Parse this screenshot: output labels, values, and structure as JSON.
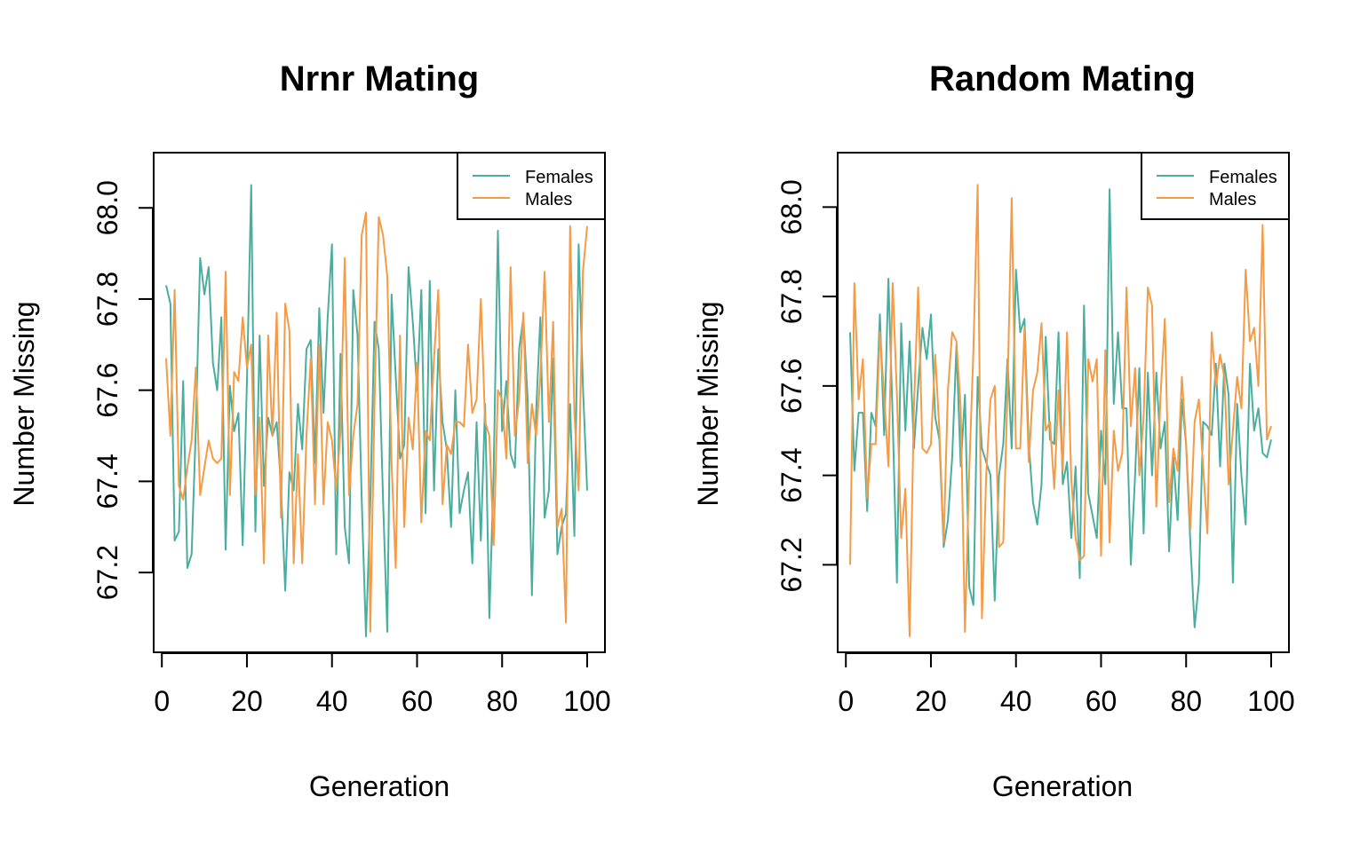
{
  "colors": {
    "females": "#4aae9e",
    "males": "#f59a45"
  },
  "chart_data": [
    {
      "type": "line",
      "title": "Nrnr Mating",
      "xlabel": "Generation",
      "ylabel": "Number Missing",
      "xlim": [
        1,
        100
      ],
      "ylim": [
        67.06,
        68.09
      ],
      "xticks": [
        "0",
        "20",
        "40",
        "60",
        "80",
        "100"
      ],
      "yticks": [
        "67.2",
        "67.4",
        "67.6",
        "67.8",
        "68.0"
      ],
      "legend_position": "top-right",
      "grid": false,
      "series": [
        {
          "name": "Females",
          "color_key": "females",
          "values": [
            67.83,
            67.79,
            67.27,
            67.29,
            67.62,
            67.21,
            67.24,
            67.52,
            67.89,
            67.81,
            67.87,
            67.66,
            67.6,
            67.76,
            67.25,
            67.61,
            67.51,
            67.55,
            67.26,
            67.62,
            68.05,
            67.29,
            67.72,
            67.39,
            67.54,
            67.5,
            67.53,
            67.39,
            67.16,
            67.42,
            67.38,
            67.57,
            67.47,
            67.69,
            67.71,
            67.44,
            67.78,
            67.55,
            67.76,
            67.92,
            67.24,
            67.68,
            67.3,
            67.22,
            67.82,
            67.72,
            67.36,
            67.06,
            67.35,
            67.75,
            67.69,
            67.36,
            67.07,
            67.81,
            67.63,
            67.45,
            67.48,
            67.87,
            67.75,
            67.6,
            67.82,
            67.33,
            67.84,
            67.38,
            67.69,
            67.53,
            67.47,
            67.3,
            67.6,
            67.33,
            67.38,
            67.42,
            67.22,
            67.53,
            67.27,
            67.57,
            67.1,
            67.42,
            67.95,
            67.51,
            67.62,
            67.46,
            67.43,
            67.69,
            67.76,
            67.58,
            67.15,
            67.55,
            67.76,
            67.32,
            67.38,
            67.67,
            67.24,
            67.3,
            67.33,
            67.57,
            67.28,
            67.92,
            67.61,
            67.38
          ]
        },
        {
          "name": "Males",
          "color_key": "males",
          "values": [
            67.67,
            67.5,
            67.82,
            67.39,
            67.36,
            67.43,
            67.49,
            67.65,
            67.37,
            67.43,
            67.49,
            67.45,
            67.44,
            67.45,
            67.86,
            67.37,
            67.64,
            67.62,
            67.76,
            67.65,
            67.7,
            67.37,
            67.54,
            67.22,
            67.72,
            67.5,
            67.77,
            67.32,
            67.79,
            67.73,
            67.22,
            67.46,
            67.22,
            67.5,
            67.67,
            67.35,
            67.7,
            67.35,
            67.53,
            67.49,
            67.38,
            67.51,
            67.89,
            67.37,
            67.5,
            67.57,
            67.94,
            67.99,
            67.07,
            67.57,
            67.98,
            67.94,
            67.85,
            67.44,
            67.21,
            67.72,
            67.3,
            67.54,
            67.47,
            67.66,
            67.31,
            67.51,
            67.49,
            67.67,
            67.82,
            67.35,
            67.48,
            67.46,
            67.53,
            67.53,
            67.52,
            67.7,
            67.55,
            67.58,
            67.8,
            67.53,
            67.5,
            67.26,
            67.6,
            67.58,
            67.45,
            67.87,
            67.5,
            67.58,
            67.77,
            67.44,
            67.57,
            67.5,
            67.63,
            67.86,
            67.53,
            67.75,
            67.3,
            67.34,
            67.09,
            67.96,
            67.55,
            67.38,
            67.86,
            67.96
          ]
        }
      ]
    },
    {
      "type": "line",
      "title": "Random Mating",
      "xlabel": "Generation",
      "ylabel": "Number Missing",
      "xlim": [
        1,
        100
      ],
      "ylim": [
        67.04,
        68.09
      ],
      "xticks": [
        "0",
        "20",
        "40",
        "60",
        "80",
        "100"
      ],
      "yticks": [
        "67.2",
        "67.4",
        "67.6",
        "67.8",
        "68.0"
      ],
      "legend_position": "top-right",
      "grid": false,
      "series": [
        {
          "name": "Females",
          "color_key": "females",
          "values": [
            67.72,
            67.41,
            67.54,
            67.54,
            67.32,
            67.54,
            67.51,
            67.76,
            67.49,
            67.84,
            67.53,
            67.16,
            67.74,
            67.5,
            67.7,
            67.46,
            67.6,
            67.73,
            67.66,
            67.76,
            67.53,
            67.48,
            67.24,
            67.3,
            67.44,
            67.69,
            67.42,
            67.58,
            67.15,
            67.11,
            67.62,
            67.46,
            67.43,
            67.4,
            67.12,
            67.4,
            67.47,
            67.66,
            67.46,
            67.86,
            67.72,
            67.75,
            67.47,
            67.34,
            67.29,
            67.38,
            67.71,
            67.48,
            67.47,
            67.72,
            67.38,
            67.43,
            67.26,
            67.42,
            67.17,
            67.78,
            67.36,
            67.31,
            67.26,
            67.5,
            67.38,
            68.04,
            67.56,
            67.72,
            67.55,
            67.55,
            67.2,
            67.4,
            67.64,
            67.27,
            67.63,
            67.4,
            67.63,
            67.46,
            67.52,
            67.23,
            67.44,
            67.3,
            67.57,
            67.47,
            67.25,
            67.06,
            67.16,
            67.52,
            67.51,
            67.49,
            67.65,
            67.42,
            67.65,
            67.58,
            67.16,
            67.56,
            67.4,
            67.29,
            67.65,
            67.5,
            67.55,
            67.45,
            67.44,
            67.48
          ]
        },
        {
          "name": "Males",
          "color_key": "males",
          "values": [
            67.2,
            67.83,
            67.57,
            67.66,
            67.35,
            67.47,
            67.47,
            67.72,
            67.58,
            67.42,
            67.83,
            67.58,
            67.26,
            67.37,
            67.04,
            67.55,
            67.82,
            67.46,
            67.45,
            67.47,
            67.67,
            67.5,
            67.25,
            67.59,
            67.72,
            67.7,
            67.55,
            67.05,
            67.41,
            67.68,
            68.05,
            67.08,
            67.4,
            67.57,
            67.6,
            67.24,
            67.25,
            67.59,
            68.02,
            67.46,
            67.46,
            67.73,
            67.43,
            67.59,
            67.63,
            67.74,
            67.5,
            67.52,
            67.37,
            67.59,
            67.41,
            67.72,
            67.39,
            67.26,
            67.21,
            67.22,
            67.66,
            67.61,
            67.66,
            67.22,
            67.68,
            67.25,
            67.5,
            67.41,
            67.45,
            67.82,
            67.51,
            67.64,
            67.4,
            67.53,
            67.82,
            67.78,
            67.33,
            67.58,
            67.75,
            67.34,
            67.46,
            67.41,
            67.62,
            67.47,
            67.28,
            67.52,
            67.57,
            67.42,
            67.27,
            67.72,
            67.6,
            67.67,
            67.62,
            67.38,
            67.5,
            67.62,
            67.55,
            67.86,
            67.7,
            67.73,
            67.6,
            67.96,
            67.48,
            67.51
          ]
        }
      ]
    }
  ]
}
